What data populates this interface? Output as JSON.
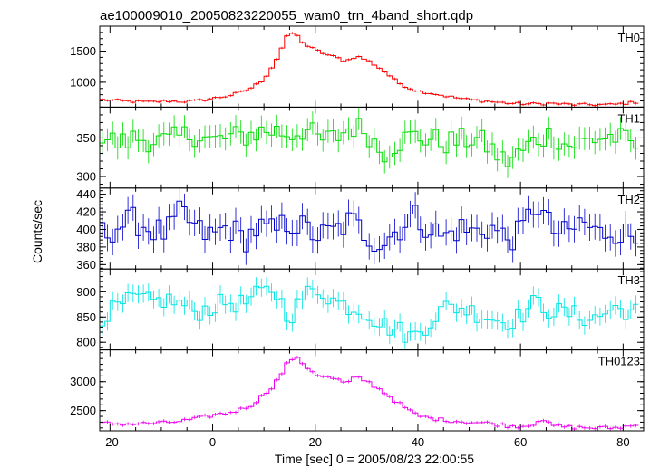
{
  "chart_data": {
    "type": "line",
    "title": "ae100009010_20050823220055_wam0_trn_4band_short.qdp",
    "xlabel": "Time [sec] 0 = 2005/08/23 22:00:55",
    "ylabel": "Counts/sec",
    "xlim": [
      -22,
      84
    ],
    "x_ticks": [
      -20,
      0,
      20,
      40,
      60,
      80
    ],
    "grid": false,
    "bin_width": 1.0,
    "panels": [
      {
        "name": "TH0",
        "color": "#ff0000",
        "ylim": [
          600,
          1900
        ],
        "y_ticks": [
          1000,
          1500
        ],
        "x": [
          -21.5,
          -18,
          -15,
          -12,
          -9,
          -6,
          -3,
          0,
          3,
          6,
          8,
          10,
          12,
          13,
          14,
          15,
          16,
          17,
          18,
          19,
          20,
          22,
          24,
          26,
          28,
          30,
          32,
          34,
          36,
          38,
          40,
          43,
          46,
          50,
          54,
          58,
          62,
          66,
          70,
          74,
          78,
          82.5
        ],
        "values": [
          720,
          700,
          690,
          680,
          700,
          690,
          700,
          740,
          780,
          850,
          930,
          1050,
          1300,
          1450,
          1650,
          1800,
          1780,
          1700,
          1600,
          1560,
          1520,
          1450,
          1400,
          1340,
          1420,
          1360,
          1260,
          1140,
          1000,
          920,
          860,
          820,
          770,
          720,
          690,
          660,
          650,
          660,
          640,
          640,
          640,
          680
        ],
        "err": 20
      },
      {
        "name": "TH1",
        "color": "#00dd00",
        "ylim": [
          285,
          390
        ],
        "y_ticks": [
          300,
          350
        ],
        "x": [
          -21.5,
          -18,
          -15,
          -12,
          -9,
          -6,
          -3,
          0,
          3,
          6,
          9,
          12,
          15,
          18,
          21,
          24,
          27,
          30,
          33,
          36,
          39,
          42,
          45,
          48,
          51,
          54,
          57,
          60,
          63,
          66,
          69,
          72,
          75,
          78,
          82.5
        ],
        "values": [
          352,
          342,
          350,
          348,
          344,
          352,
          356,
          345,
          350,
          352,
          358,
          360,
          355,
          362,
          346,
          350,
          365,
          360,
          330,
          345,
          352,
          350,
          344,
          346,
          350,
          338,
          318,
          330,
          348,
          355,
          340,
          344,
          350,
          352,
          340
        ],
        "err": 15
      },
      {
        "name": "TH2",
        "color": "#0000cc",
        "ylim": [
          355,
          447
        ],
        "y_ticks": [
          360,
          380,
          400,
          420,
          440
        ],
        "x": [
          -21.5,
          -18,
          -15,
          -12,
          -9,
          -6,
          -3,
          0,
          3,
          6,
          9,
          12,
          15,
          18,
          21,
          24,
          27,
          30,
          33,
          36,
          39,
          42,
          45,
          48,
          51,
          54,
          57,
          60,
          63,
          66,
          69,
          72,
          75,
          78,
          82.5
        ],
        "values": [
          395,
          405,
          410,
          400,
          395,
          420,
          398,
          392,
          404,
          388,
          402,
          396,
          410,
          400,
          392,
          398,
          410,
          394,
          384,
          400,
          416,
          404,
          390,
          402,
          396,
          404,
          390,
          394,
          432,
          400,
          392,
          410,
          394,
          400,
          390
        ],
        "err": 15
      },
      {
        "name": "TH3",
        "color": "#00e5e5",
        "ylim": [
          785,
          945
        ],
        "y_ticks": [
          800,
          850,
          900
        ],
        "x": [
          -21.5,
          -18,
          -15,
          -12,
          -9,
          -6,
          -3,
          0,
          3,
          6,
          9,
          12,
          15,
          18,
          21,
          24,
          27,
          30,
          33,
          36,
          39,
          42,
          45,
          48,
          51,
          54,
          57,
          60,
          63,
          66,
          69,
          72,
          75,
          78,
          82.5
        ],
        "values": [
          852,
          870,
          888,
          878,
          885,
          875,
          860,
          870,
          880,
          875,
          895,
          905,
          850,
          895,
          905,
          880,
          870,
          860,
          835,
          825,
          810,
          838,
          868,
          870,
          860,
          850,
          840,
          852,
          880,
          862,
          858,
          850,
          848,
          868,
          860
        ],
        "err": 18
      },
      {
        "name": "TH0123",
        "color": "#ee00ee",
        "ylim": [
          2150,
          3550
        ],
        "y_ticks": [
          2500,
          3000
        ],
        "x": [
          -21.5,
          -18,
          -15,
          -12,
          -9,
          -6,
          -3,
          0,
          3,
          6,
          8,
          10,
          12,
          13,
          14,
          15,
          16,
          17,
          18,
          19,
          20,
          22,
          24,
          26,
          28,
          30,
          32,
          34,
          36,
          38,
          40,
          43,
          46,
          50,
          54,
          58,
          62,
          64,
          66,
          70,
          74,
          78,
          82.5
        ],
        "values": [
          2280,
          2270,
          2270,
          2280,
          2290,
          2320,
          2360,
          2420,
          2460,
          2530,
          2620,
          2780,
          2950,
          3080,
          3220,
          3380,
          3420,
          3360,
          3280,
          3210,
          3140,
          3080,
          3050,
          2960,
          3080,
          3010,
          2900,
          2780,
          2640,
          2520,
          2410,
          2360,
          2330,
          2300,
          2280,
          2230,
          2240,
          2370,
          2240,
          2210,
          2200,
          2200,
          2240
        ],
        "err": 30
      }
    ]
  }
}
